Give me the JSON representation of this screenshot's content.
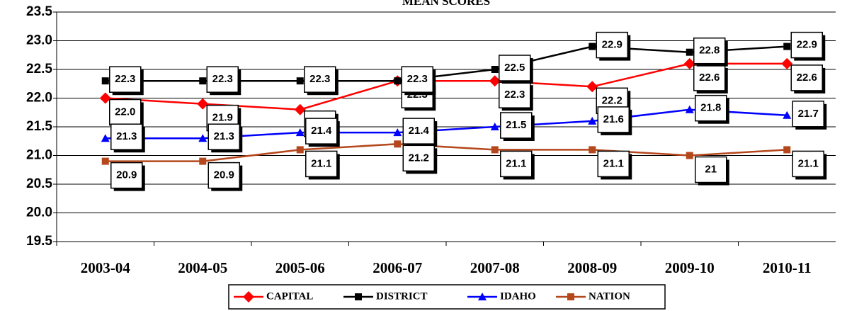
{
  "chart_data": {
    "type": "line",
    "title": "MEAN SCORES",
    "categories": [
      "2003-04",
      "2004-05",
      "2005-06",
      "2006-07",
      "2007-08",
      "2008-09",
      "2009-10",
      "2010-11"
    ],
    "series": [
      {
        "name": "CAPITAL",
        "color": "#ff0000",
        "marker": "diamond",
        "values": [
          22.0,
          21.9,
          21.8,
          22.3,
          22.3,
          22.2,
          22.6,
          22.6
        ],
        "value_labels": [
          "22.0",
          "21.9",
          "21.8",
          "22.3",
          "22.3",
          "22.2",
          "22.6",
          "22.6"
        ]
      },
      {
        "name": "DISTRICT",
        "color": "#000000",
        "marker": "square",
        "values": [
          22.3,
          22.3,
          22.3,
          22.3,
          22.5,
          22.9,
          22.8,
          22.9
        ],
        "value_labels": [
          "22.3",
          "22.3",
          "22.3",
          "22.3",
          "22.5",
          "22.9",
          "22.8",
          "22.9"
        ]
      },
      {
        "name": "IDAHO",
        "color": "#0000ff",
        "marker": "triangle",
        "values": [
          21.3,
          21.3,
          21.4,
          21.4,
          21.5,
          21.6,
          21.8,
          21.7
        ],
        "value_labels": [
          "21.3",
          "21.3",
          "21.4",
          "21.4",
          "21.5",
          "21.6",
          "21.8",
          "21.7"
        ]
      },
      {
        "name": "NATION",
        "color": "#b5471c",
        "marker": "square",
        "values": [
          20.9,
          20.9,
          21.1,
          21.2,
          21.1,
          21.1,
          21,
          21.1
        ],
        "value_labels": [
          "20.9",
          "20.9",
          "21.1",
          "21.2",
          "21.1",
          "21.1",
          "21",
          "21.1"
        ]
      }
    ],
    "ylim": [
      19.5,
      23.5
    ],
    "yticks": [
      19.5,
      {
        "value": 20,
        "label": "20.0"
      },
      20.5,
      {
        "value": 21,
        "label": "21.0"
      },
      21.5,
      {
        "value": 22,
        "label": "22.0"
      },
      22.5,
      {
        "value": 23,
        "label": "23.0"
      },
      23.5
    ],
    "grid": true,
    "legend": "bottom"
  }
}
